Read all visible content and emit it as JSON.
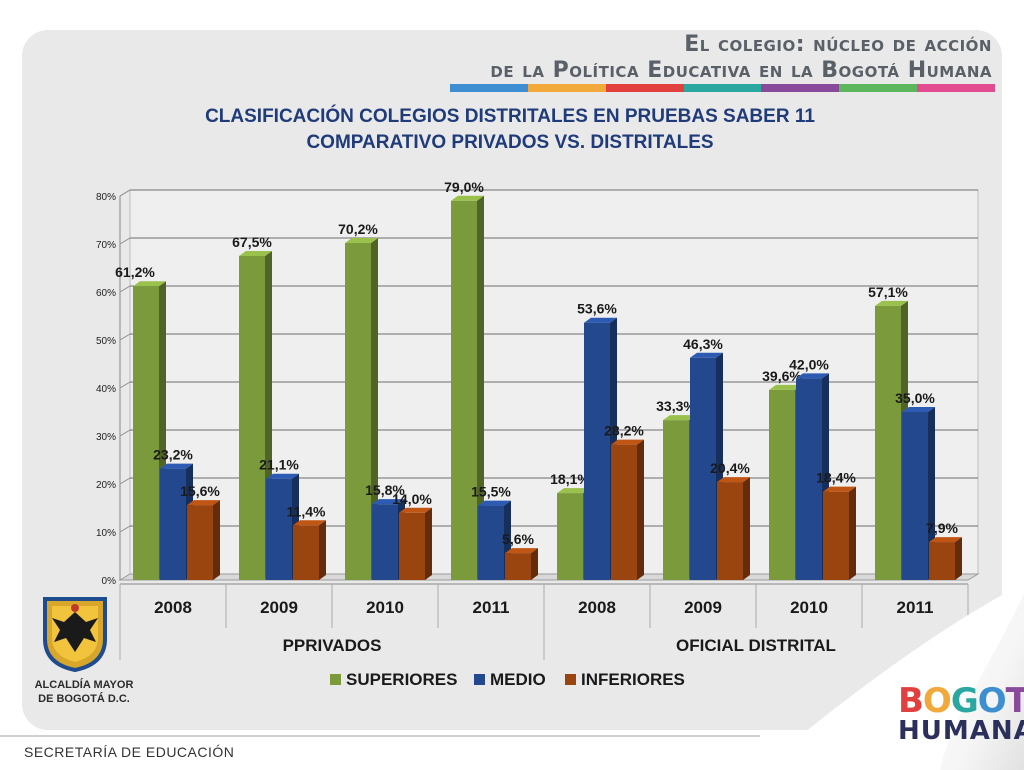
{
  "header": {
    "line1": "El colegio: núcleo de acción",
    "line2": "de la Política Educativa en la Bogotá Humana"
  },
  "strip_colors": [
    "#3d8fd1",
    "#f2a93b",
    "#e2403f",
    "#2aa7a0",
    "#8a4a9b",
    "#5db65d",
    "#e24b8f"
  ],
  "chart_data": {
    "type": "bar",
    "title": "CLASIFICACIÓN COLEGIOS DISTRITALES EN PRUEBAS SABER 11",
    "subtitle": "COMPARATIVO PRIVADOS VS. DISTRITALES",
    "categories": [
      "2008",
      "2009",
      "2010",
      "2011",
      "2008",
      "2009",
      "2010",
      "2011"
    ],
    "groups": [
      {
        "label": "PPRIVADOS",
        "span": [
          0,
          3
        ]
      },
      {
        "label": "OFICIAL DISTRITAL",
        "span": [
          4,
          7
        ]
      }
    ],
    "series": [
      {
        "name": "SUPERIORES",
        "color": "#7b9a3c",
        "values": [
          61.2,
          67.5,
          70.2,
          79.0,
          18.1,
          33.3,
          39.6,
          57.1
        ],
        "labels": [
          "61,2%",
          "67,5%",
          "70,2%",
          "79,0%",
          "18,1%",
          "33,3%",
          "39,6%",
          "57,1%"
        ]
      },
      {
        "name": "MEDIO",
        "color": "#24488e",
        "values": [
          23.2,
          21.1,
          15.8,
          15.5,
          53.6,
          46.3,
          42.0,
          35.0
        ],
        "labels": [
          "23,2%",
          "21,1%",
          "15,8%",
          "15,5%",
          "53,6%",
          "46,3%",
          "42,0%",
          "35,0%"
        ]
      },
      {
        "name": "INFERIORES",
        "color": "#9a4410",
        "values": [
          15.6,
          11.4,
          14.0,
          5.6,
          28.2,
          20.4,
          18.4,
          7.9
        ],
        "labels": [
          "15,6%",
          "11,4%",
          "14,0%",
          "5,6%",
          "28,2%",
          "20,4%",
          "18,4%",
          "7,9%"
        ]
      }
    ],
    "yticks": [
      "0%",
      "10%",
      "20%",
      "30%",
      "40%",
      "50%",
      "60%",
      "70%",
      "80%"
    ],
    "ylim": [
      0,
      80
    ],
    "grid": true,
    "legend": "bottom"
  },
  "logo_left": {
    "line1": "ALCALDÍA MAYOR",
    "line2": "DE BOGOTÁ D.C."
  },
  "footer": {
    "text": "SECRETARÍA DE EDUCACIÓN"
  },
  "brand": {
    "bogota": "BOGOTÁ",
    "humana": "HUMANA"
  }
}
